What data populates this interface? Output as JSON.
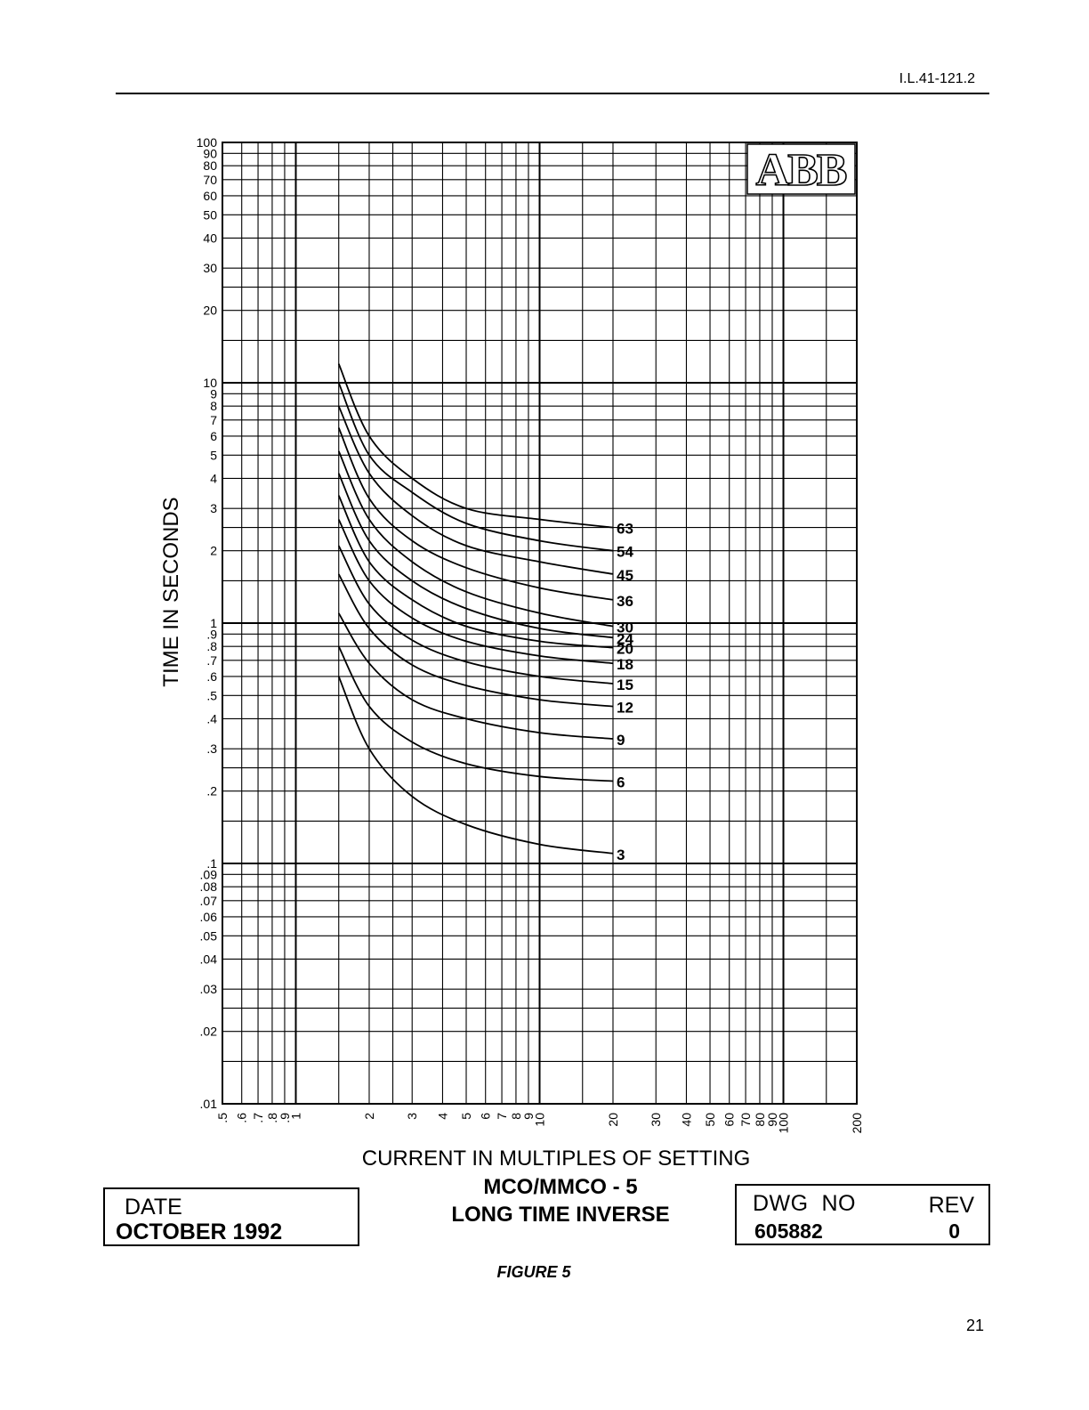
{
  "header": {
    "doc_id": "I.L.41-121.2"
  },
  "logo_text": "ABB",
  "chart_data": {
    "type": "line",
    "xlabel": "CURRENT IN MULTIPLES OF SETTING",
    "ylabel": "TIME IN SECONDS",
    "xscale": "log",
    "yscale": "log",
    "xlim": [
      0.5,
      200
    ],
    "ylim": [
      0.01,
      100
    ],
    "grid": true,
    "x_tick_labels": [
      {
        "v": 0.5,
        "t": ".5"
      },
      {
        "v": 0.6,
        "t": ".6"
      },
      {
        "v": 0.7,
        "t": ".7"
      },
      {
        "v": 0.8,
        "t": ".8"
      },
      {
        "v": 0.9,
        "t": ".9"
      },
      {
        "v": 1,
        "t": "1"
      },
      {
        "v": 2,
        "t": "2"
      },
      {
        "v": 3,
        "t": "3"
      },
      {
        "v": 4,
        "t": "4"
      },
      {
        "v": 5,
        "t": "5"
      },
      {
        "v": 6,
        "t": "6"
      },
      {
        "v": 7,
        "t": "7"
      },
      {
        "v": 8,
        "t": "8"
      },
      {
        "v": 9,
        "t": "9"
      },
      {
        "v": 10,
        "t": "10"
      },
      {
        "v": 20,
        "t": "20"
      },
      {
        "v": 30,
        "t": "30"
      },
      {
        "v": 40,
        "t": "40"
      },
      {
        "v": 50,
        "t": "50"
      },
      {
        "v": 60,
        "t": "60"
      },
      {
        "v": 70,
        "t": "70"
      },
      {
        "v": 80,
        "t": "80"
      },
      {
        "v": 90,
        "t": "90"
      },
      {
        "v": 100,
        "t": "100"
      },
      {
        "v": 200,
        "t": "200"
      }
    ],
    "y_tick_labels": [
      {
        "v": 100,
        "t": "100"
      },
      {
        "v": 90,
        "t": "90"
      },
      {
        "v": 80,
        "t": "80"
      },
      {
        "v": 70,
        "t": "70"
      },
      {
        "v": 60,
        "t": "60"
      },
      {
        "v": 50,
        "t": "50"
      },
      {
        "v": 40,
        "t": "40"
      },
      {
        "v": 30,
        "t": "30"
      },
      {
        "v": 20,
        "t": "20"
      },
      {
        "v": 10,
        "t": "10"
      },
      {
        "v": 9,
        "t": "9"
      },
      {
        "v": 8,
        "t": "8"
      },
      {
        "v": 7,
        "t": "7"
      },
      {
        "v": 6,
        "t": "6"
      },
      {
        "v": 5,
        "t": "5"
      },
      {
        "v": 4,
        "t": "4"
      },
      {
        "v": 3,
        "t": "3"
      },
      {
        "v": 2,
        "t": "2"
      },
      {
        "v": 1,
        "t": "1"
      },
      {
        "v": 0.9,
        "t": ".9"
      },
      {
        "v": 0.8,
        "t": ".8"
      },
      {
        "v": 0.7,
        "t": ".7"
      },
      {
        "v": 0.6,
        "t": ".6"
      },
      {
        "v": 0.5,
        "t": ".5"
      },
      {
        "v": 0.4,
        "t": ".4"
      },
      {
        "v": 0.3,
        "t": ".3"
      },
      {
        "v": 0.2,
        "t": ".2"
      },
      {
        "v": 0.1,
        "t": ".1"
      },
      {
        "v": 0.09,
        "t": ".09"
      },
      {
        "v": 0.08,
        "t": ".08"
      },
      {
        "v": 0.07,
        "t": ".07"
      },
      {
        "v": 0.06,
        "t": ".06"
      },
      {
        "v": 0.05,
        "t": ".05"
      },
      {
        "v": 0.04,
        "t": ".04"
      },
      {
        "v": 0.03,
        "t": ".03"
      },
      {
        "v": 0.02,
        "t": ".02"
      },
      {
        "v": 0.01,
        "t": ".01"
      }
    ],
    "series": [
      {
        "name": "63",
        "x": [
          1.5,
          2,
          3,
          5,
          10,
          20
        ],
        "y": [
          12.0,
          6.0,
          4.0,
          3.0,
          2.7,
          2.5
        ]
      },
      {
        "name": "54",
        "x": [
          1.5,
          2,
          3,
          5,
          10,
          20
        ],
        "y": [
          10.0,
          5.0,
          3.5,
          2.6,
          2.2,
          2.0
        ]
      },
      {
        "name": "45",
        "x": [
          1.5,
          2,
          3,
          5,
          10,
          20
        ],
        "y": [
          8.0,
          4.2,
          2.8,
          2.1,
          1.8,
          1.6
        ]
      },
      {
        "name": "36",
        "x": [
          1.5,
          2,
          3,
          5,
          10,
          20
        ],
        "y": [
          6.5,
          3.3,
          2.2,
          1.7,
          1.4,
          1.25
        ]
      },
      {
        "name": "30",
        "x": [
          1.5,
          2,
          3,
          5,
          10,
          20
        ],
        "y": [
          5.2,
          2.7,
          1.8,
          1.35,
          1.1,
          0.97
        ]
      },
      {
        "name": "24",
        "x": [
          1.5,
          2,
          3,
          5,
          10,
          20
        ],
        "y": [
          4.2,
          2.2,
          1.5,
          1.15,
          0.95,
          0.87
        ]
      },
      {
        "name": "20",
        "x": [
          1.5,
          2,
          3,
          5,
          10,
          20
        ],
        "y": [
          3.4,
          1.8,
          1.25,
          0.97,
          0.84,
          0.79
        ]
      },
      {
        "name": "18",
        "x": [
          1.5,
          2,
          3,
          5,
          10,
          20
        ],
        "y": [
          2.7,
          1.5,
          1.05,
          0.84,
          0.73,
          0.68
        ]
      },
      {
        "name": "15",
        "x": [
          1.5,
          2,
          3,
          5,
          10,
          20
        ],
        "y": [
          2.1,
          1.2,
          0.85,
          0.69,
          0.6,
          0.56
        ]
      },
      {
        "name": "12",
        "x": [
          1.5,
          2,
          3,
          5,
          10,
          20
        ],
        "y": [
          1.6,
          0.95,
          0.67,
          0.55,
          0.48,
          0.45
        ]
      },
      {
        "name": "9",
        "x": [
          1.5,
          2,
          3,
          5,
          10,
          20
        ],
        "y": [
          1.1,
          0.68,
          0.48,
          0.4,
          0.35,
          0.33
        ]
      },
      {
        "name": "6",
        "x": [
          1.5,
          2,
          3,
          5,
          10,
          20
        ],
        "y": [
          0.8,
          0.45,
          0.32,
          0.26,
          0.23,
          0.22
        ]
      },
      {
        "name": "3",
        "x": [
          1.5,
          2,
          3,
          5,
          10,
          20
        ],
        "y": [
          0.6,
          0.3,
          0.19,
          0.145,
          0.12,
          0.11
        ]
      }
    ]
  },
  "title_block": {
    "date_label": "DATE",
    "date_value": "OCTOBER 1992",
    "title_line1": "MCO/MMCO - 5",
    "title_line2": "LONG TIME INVERSE",
    "dwg_label": "DWG  NO",
    "dwg_value": "605882",
    "rev_label": "REV",
    "rev_value": "0"
  },
  "figure_caption": "FIGURE 5",
  "page_number": "21"
}
